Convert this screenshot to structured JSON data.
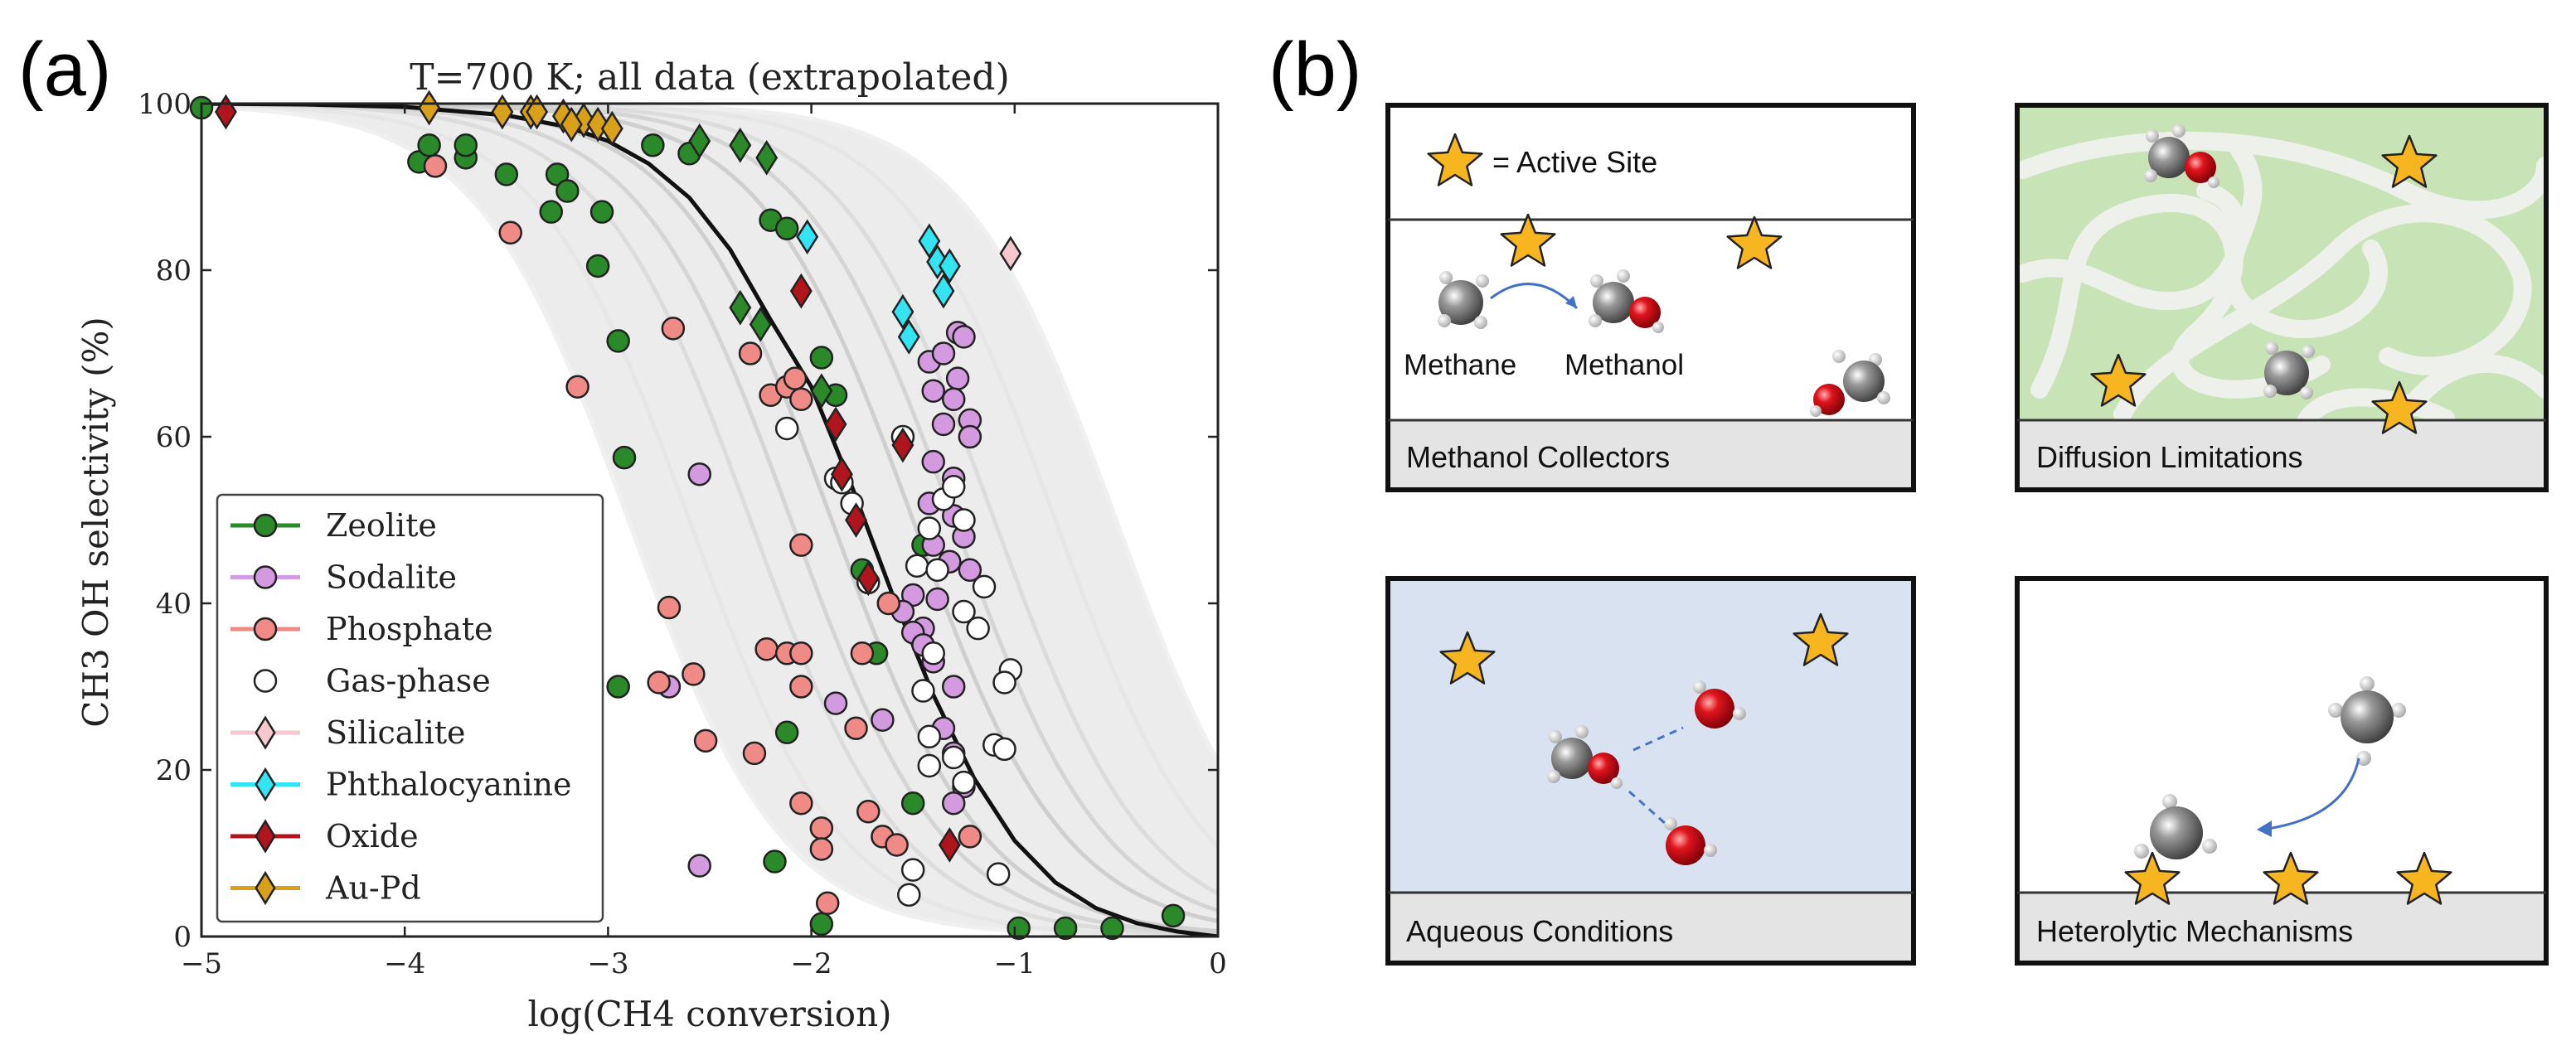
{
  "panel_a_label": "(a)",
  "panel_b_label": "(b)",
  "chart_data": {
    "type": "scatter",
    "title": "T=700 K; all data (extrapolated)",
    "xlabel": "log(CH4 conversion)",
    "ylabel": "CH3 OH selectivity (%)",
    "xlim": [
      -5,
      0
    ],
    "ylim": [
      0,
      100
    ],
    "x_ticks": [
      "−5",
      "−4",
      "−3",
      "−2",
      "−1",
      "0"
    ],
    "y_ticks": [
      "0",
      "20",
      "40",
      "60",
      "80",
      "100"
    ],
    "grid": false,
    "legend_position": "lower-left",
    "model_curve": [
      [
        -5,
        100
      ],
      [
        -4.5,
        99.9
      ],
      [
        -4,
        99.6
      ],
      [
        -3.5,
        98.6
      ],
      [
        -3.2,
        97.2
      ],
      [
        -3,
        95.5
      ],
      [
        -2.8,
        92.8
      ],
      [
        -2.6,
        88.7
      ],
      [
        -2.4,
        82.5
      ],
      [
        -2.2,
        74
      ],
      [
        -2,
        66
      ],
      [
        -1.8,
        54
      ],
      [
        -1.6,
        41
      ],
      [
        -1.4,
        29
      ],
      [
        -1.2,
        19
      ],
      [
        -1,
        11.5
      ],
      [
        -0.8,
        6.5
      ],
      [
        -0.6,
        3.4
      ],
      [
        -0.4,
        1.6
      ],
      [
        -0.2,
        0.6
      ],
      [
        0,
        0
      ]
    ],
    "band_offsets": [
      -1.2,
      -0.9,
      -0.6,
      -0.4,
      -0.2,
      0.2,
      0.4,
      0.6,
      0.9,
      1.2
    ],
    "series": [
      {
        "name": "Zeolite",
        "marker": "circle",
        "color": "#2a8a2a",
        "points": [
          [
            -5.0,
            99.5
          ],
          [
            -3.93,
            93
          ],
          [
            -3.88,
            95
          ],
          [
            -3.7,
            93.5
          ],
          [
            -3.7,
            95
          ],
          [
            -3.5,
            91.5
          ],
          [
            -3.25,
            91.5
          ],
          [
            -3.28,
            87
          ],
          [
            -3.2,
            89.5
          ],
          [
            -3.03,
            87
          ],
          [
            -3.05,
            80.5
          ],
          [
            -2.95,
            71.5
          ],
          [
            -2.92,
            57.5
          ],
          [
            -2.95,
            30
          ],
          [
            -2.78,
            95
          ],
          [
            -2.6,
            94
          ],
          [
            -2.2,
            86
          ],
          [
            -2.12,
            85
          ],
          [
            -1.95,
            69.5
          ],
          [
            -1.88,
            65
          ],
          [
            -1.75,
            44
          ],
          [
            -1.68,
            34
          ],
          [
            -1.45,
            47
          ],
          [
            -1.5,
            16
          ],
          [
            -2.12,
            24.5
          ],
          [
            -2.18,
            9
          ],
          [
            -1.95,
            1.5
          ],
          [
            -0.98,
            1
          ],
          [
            -0.75,
            1
          ],
          [
            -0.52,
            1
          ],
          [
            -0.22,
            2.5
          ]
        ]
      },
      {
        "name": "Sodalite",
        "marker": "circle",
        "color": "#d49ae0",
        "points": [
          [
            -1.42,
            69
          ],
          [
            -1.35,
            70
          ],
          [
            -1.28,
            72.5
          ],
          [
            -1.25,
            72
          ],
          [
            -1.4,
            65.5
          ],
          [
            -1.28,
            67
          ],
          [
            -1.3,
            64.5
          ],
          [
            -1.22,
            62
          ],
          [
            -1.35,
            61.5
          ],
          [
            -1.22,
            60
          ],
          [
            -1.4,
            57
          ],
          [
            -1.3,
            55
          ],
          [
            -1.42,
            52
          ],
          [
            -1.3,
            50.5
          ],
          [
            -1.25,
            48
          ],
          [
            -1.4,
            47
          ],
          [
            -1.32,
            45
          ],
          [
            -1.22,
            44
          ],
          [
            -1.5,
            41
          ],
          [
            -1.38,
            40.5
          ],
          [
            -1.45,
            37
          ],
          [
            -1.5,
            36.5
          ],
          [
            -1.45,
            35
          ],
          [
            -1.4,
            33
          ],
          [
            -1.3,
            30
          ],
          [
            -1.65,
            26
          ],
          [
            -1.35,
            25
          ],
          [
            -1.3,
            22
          ],
          [
            -1.25,
            18
          ],
          [
            -1.3,
            16
          ],
          [
            -2.55,
            55.5
          ],
          [
            -2.7,
            30
          ],
          [
            -2.55,
            8.5
          ],
          [
            -1.88,
            28
          ],
          [
            -1.55,
            39
          ]
        ]
      },
      {
        "name": "Phosphate",
        "marker": "circle",
        "color": "#f08a86",
        "points": [
          [
            -3.85,
            92.5
          ],
          [
            -3.48,
            84.5
          ],
          [
            -3.15,
            66
          ],
          [
            -2.68,
            73
          ],
          [
            -2.3,
            70
          ],
          [
            -2.2,
            65
          ],
          [
            -2.12,
            66
          ],
          [
            -2.08,
            67
          ],
          [
            -2.05,
            64.5
          ],
          [
            -2.05,
            47
          ],
          [
            -2.7,
            39.5
          ],
          [
            -2.58,
            31.5
          ],
          [
            -2.75,
            30.5
          ],
          [
            -2.22,
            34.5
          ],
          [
            -2.12,
            34
          ],
          [
            -2.05,
            34
          ],
          [
            -2.05,
            30
          ],
          [
            -2.52,
            23.5
          ],
          [
            -2.28,
            22
          ],
          [
            -2.05,
            16
          ],
          [
            -1.95,
            13
          ],
          [
            -1.95,
            10.5
          ],
          [
            -1.72,
            15
          ],
          [
            -1.65,
            12
          ],
          [
            -1.58,
            11
          ],
          [
            -1.22,
            12
          ],
          [
            -1.78,
            25
          ],
          [
            -1.75,
            34
          ],
          [
            -1.62,
            40
          ],
          [
            -1.92,
            4
          ]
        ]
      },
      {
        "name": "Gas-phase",
        "marker": "circle",
        "color": "#ffffff",
        "points": [
          [
            -2.12,
            61
          ],
          [
            -1.88,
            55
          ],
          [
            -1.85,
            54.5
          ],
          [
            -1.8,
            52
          ],
          [
            -1.72,
            42.5
          ],
          [
            -1.55,
            60
          ],
          [
            -1.48,
            44.5
          ],
          [
            -1.42,
            49
          ],
          [
            -1.35,
            52.5
          ],
          [
            -1.3,
            54
          ],
          [
            -1.25,
            50
          ],
          [
            -1.38,
            44
          ],
          [
            -1.25,
            39
          ],
          [
            -1.18,
            37
          ],
          [
            -1.4,
            34
          ],
          [
            -1.45,
            29.5
          ],
          [
            -1.42,
            24
          ],
          [
            -1.42,
            20.5
          ],
          [
            -1.25,
            18.5
          ],
          [
            -1.3,
            21.5
          ],
          [
            -1.1,
            23
          ],
          [
            -1.05,
            22.5
          ],
          [
            -1.02,
            32
          ],
          [
            -1.05,
            30.5
          ],
          [
            -1.5,
            8
          ],
          [
            -1.52,
            5
          ],
          [
            -1.08,
            7.5
          ],
          [
            -1.15,
            42
          ]
        ]
      },
      {
        "name": "Silicalite",
        "marker": "diamond",
        "color": "#f5c7cf",
        "points": [
          [
            -1.02,
            82
          ]
        ]
      },
      {
        "name": "Phthalocyanine",
        "marker": "diamond",
        "color": "#33e4f2",
        "points": [
          [
            -2.02,
            84
          ],
          [
            -1.42,
            83.5
          ],
          [
            -1.38,
            81
          ],
          [
            -1.32,
            80.5
          ],
          [
            -1.35,
            77.5
          ],
          [
            -1.55,
            75
          ],
          [
            -1.52,
            72
          ]
        ]
      },
      {
        "name": "Oxide",
        "marker": "diamond",
        "color": "#b0141c",
        "points": [
          [
            -4.88,
            99
          ],
          [
            -2.05,
            77.5
          ],
          [
            -1.88,
            61.5
          ],
          [
            -1.85,
            55.5
          ],
          [
            -1.78,
            50
          ],
          [
            -1.72,
            43
          ],
          [
            -1.32,
            11
          ],
          [
            -1.55,
            59
          ]
        ]
      },
      {
        "name": "Au-Pd",
        "marker": "diamond",
        "color": "#d9a019",
        "points": [
          [
            -3.88,
            99.5
          ],
          [
            -3.52,
            99
          ],
          [
            -3.38,
            99
          ],
          [
            -3.22,
            98.5
          ],
          [
            -3.12,
            98
          ],
          [
            -3.05,
            97.5
          ],
          [
            -2.98,
            97
          ],
          [
            -3.18,
            97.5
          ],
          [
            -3.35,
            99
          ]
        ]
      },
      {
        "name": "Zeolite-diamond-extra",
        "marker": "diamond",
        "color": "#2a8a2a",
        "points": [
          [
            -2.55,
            95.5
          ],
          [
            -2.35,
            95
          ],
          [
            -2.22,
            93.5
          ],
          [
            -2.35,
            75.5
          ],
          [
            -2.25,
            73.5
          ],
          [
            -1.95,
            65.5
          ]
        ]
      }
    ],
    "legend": [
      "Zeolite",
      "Sodalite",
      "Phosphate",
      "Gas-phase",
      "Silicalite",
      "Phthalocyanine",
      "Oxide",
      "Au-Pd"
    ]
  },
  "panel_b": {
    "boxes": [
      {
        "caption": "Methanol Collectors",
        "background": "#ffffff"
      },
      {
        "caption": "Diffusion Limitations",
        "background": "#c8e3b6"
      },
      {
        "caption": "Aqueous Conditions",
        "background": "#d8e2f0"
      },
      {
        "caption": "Heterolytic Mechanisms",
        "background": "#ffffff"
      }
    ],
    "legend_text": "= Active Site",
    "methane_label": "Methane",
    "methanol_label": "Methanol"
  }
}
